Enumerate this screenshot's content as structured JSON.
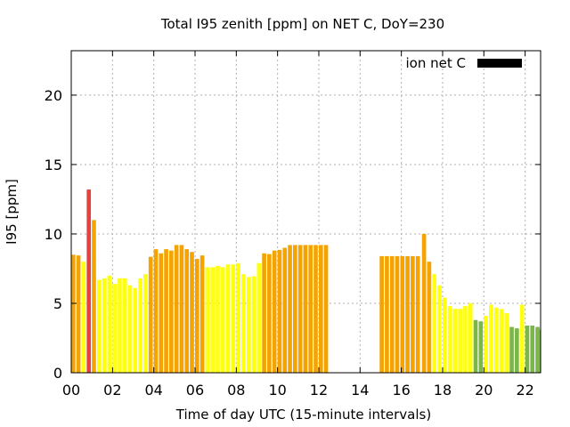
{
  "chart_data": {
    "type": "bar",
    "title": "Total I95 zenith [ppm] on NET C, DoY=230",
    "xlabel": "Time of day UTC (15-minute intervals)",
    "ylabel": "I95 [ppm]",
    "xlim": [
      0,
      22.75
    ],
    "ylim": [
      0,
      23.2
    ],
    "x_ticks": [
      0,
      2,
      4,
      6,
      8,
      10,
      12,
      14,
      16,
      18,
      20,
      22
    ],
    "x_tick_labels": [
      "00",
      "02",
      "04",
      "06",
      "08",
      "10",
      "12",
      "14",
      "16",
      "18",
      "20",
      "22"
    ],
    "y_ticks": [
      0,
      5,
      10,
      15,
      20
    ],
    "y_tick_labels": [
      "0",
      "5",
      "10",
      "15",
      "20"
    ],
    "grid": true,
    "legend": {
      "label": "ion net C",
      "position": "top-right",
      "color": "#000000"
    },
    "colors": {
      "red": "#e8403c",
      "orange": "#f5a300",
      "yellow": "#ffff10",
      "green": "#7ab648"
    },
    "bar_width_hours": 0.2,
    "bars": [
      {
        "x": 0.0,
        "value": 8.5,
        "color": "orange"
      },
      {
        "x": 0.25,
        "value": 8.45,
        "color": "orange"
      },
      {
        "x": 0.5,
        "value": 8.0,
        "color": "yellow"
      },
      {
        "x": 0.75,
        "value": 13.2,
        "color": "red"
      },
      {
        "x": 1.0,
        "value": 11.0,
        "color": "orange"
      },
      {
        "x": 1.25,
        "value": 6.7,
        "color": "yellow"
      },
      {
        "x": 1.5,
        "value": 6.8,
        "color": "yellow"
      },
      {
        "x": 1.75,
        "value": 7.0,
        "color": "yellow"
      },
      {
        "x": 2.0,
        "value": 6.4,
        "color": "yellow"
      },
      {
        "x": 2.25,
        "value": 6.8,
        "color": "yellow"
      },
      {
        "x": 2.5,
        "value": 6.8,
        "color": "yellow"
      },
      {
        "x": 2.75,
        "value": 6.3,
        "color": "yellow"
      },
      {
        "x": 3.0,
        "value": 6.1,
        "color": "yellow"
      },
      {
        "x": 3.25,
        "value": 6.8,
        "color": "yellow"
      },
      {
        "x": 3.5,
        "value": 7.1,
        "color": "yellow"
      },
      {
        "x": 3.75,
        "value": 8.35,
        "color": "orange"
      },
      {
        "x": 4.0,
        "value": 8.9,
        "color": "orange"
      },
      {
        "x": 4.25,
        "value": 8.6,
        "color": "orange"
      },
      {
        "x": 4.5,
        "value": 8.9,
        "color": "orange"
      },
      {
        "x": 4.75,
        "value": 8.8,
        "color": "orange"
      },
      {
        "x": 5.0,
        "value": 9.2,
        "color": "orange"
      },
      {
        "x": 5.25,
        "value": 9.2,
        "color": "orange"
      },
      {
        "x": 5.5,
        "value": 8.9,
        "color": "orange"
      },
      {
        "x": 5.75,
        "value": 8.7,
        "color": "orange"
      },
      {
        "x": 6.0,
        "value": 8.2,
        "color": "orange"
      },
      {
        "x": 6.25,
        "value": 8.45,
        "color": "orange"
      },
      {
        "x": 6.5,
        "value": 7.6,
        "color": "yellow"
      },
      {
        "x": 6.75,
        "value": 7.6,
        "color": "yellow"
      },
      {
        "x": 7.0,
        "value": 7.7,
        "color": "yellow"
      },
      {
        "x": 7.25,
        "value": 7.6,
        "color": "yellow"
      },
      {
        "x": 7.5,
        "value": 7.8,
        "color": "yellow"
      },
      {
        "x": 7.75,
        "value": 7.8,
        "color": "yellow"
      },
      {
        "x": 8.0,
        "value": 7.9,
        "color": "yellow"
      },
      {
        "x": 8.25,
        "value": 7.1,
        "color": "yellow"
      },
      {
        "x": 8.5,
        "value": 6.9,
        "color": "yellow"
      },
      {
        "x": 8.75,
        "value": 6.95,
        "color": "yellow"
      },
      {
        "x": 9.0,
        "value": 7.9,
        "color": "yellow"
      },
      {
        "x": 9.25,
        "value": 8.6,
        "color": "orange"
      },
      {
        "x": 9.5,
        "value": 8.55,
        "color": "orange"
      },
      {
        "x": 9.75,
        "value": 8.8,
        "color": "orange"
      },
      {
        "x": 10.0,
        "value": 8.85,
        "color": "orange"
      },
      {
        "x": 10.25,
        "value": 9.0,
        "color": "orange"
      },
      {
        "x": 10.5,
        "value": 9.2,
        "color": "orange"
      },
      {
        "x": 10.75,
        "value": 9.2,
        "color": "orange"
      },
      {
        "x": 11.0,
        "value": 9.2,
        "color": "orange"
      },
      {
        "x": 11.25,
        "value": 9.2,
        "color": "orange"
      },
      {
        "x": 11.5,
        "value": 9.2,
        "color": "orange"
      },
      {
        "x": 11.75,
        "value": 9.2,
        "color": "orange"
      },
      {
        "x": 12.0,
        "value": 9.2,
        "color": "orange"
      },
      {
        "x": 12.25,
        "value": 9.2,
        "color": "orange"
      },
      {
        "x": 14.95,
        "value": 8.4,
        "color": "orange"
      },
      {
        "x": 15.2,
        "value": 8.4,
        "color": "orange"
      },
      {
        "x": 15.45,
        "value": 8.4,
        "color": "orange"
      },
      {
        "x": 15.7,
        "value": 8.4,
        "color": "orange"
      },
      {
        "x": 15.95,
        "value": 8.4,
        "color": "orange"
      },
      {
        "x": 16.2,
        "value": 8.4,
        "color": "orange"
      },
      {
        "x": 16.45,
        "value": 8.4,
        "color": "orange"
      },
      {
        "x": 16.7,
        "value": 8.4,
        "color": "orange"
      },
      {
        "x": 17.0,
        "value": 10.0,
        "color": "orange"
      },
      {
        "x": 17.25,
        "value": 8.0,
        "color": "orange"
      },
      {
        "x": 17.5,
        "value": 7.1,
        "color": "yellow"
      },
      {
        "x": 17.75,
        "value": 6.3,
        "color": "yellow"
      },
      {
        "x": 18.0,
        "value": 5.4,
        "color": "yellow"
      },
      {
        "x": 18.25,
        "value": 4.8,
        "color": "yellow"
      },
      {
        "x": 18.5,
        "value": 4.6,
        "color": "yellow"
      },
      {
        "x": 18.75,
        "value": 4.6,
        "color": "yellow"
      },
      {
        "x": 19.0,
        "value": 4.8,
        "color": "yellow"
      },
      {
        "x": 19.25,
        "value": 5.0,
        "color": "yellow"
      },
      {
        "x": 19.5,
        "value": 3.8,
        "color": "green"
      },
      {
        "x": 19.75,
        "value": 3.7,
        "color": "green"
      },
      {
        "x": 20.0,
        "value": 4.1,
        "color": "yellow"
      },
      {
        "x": 20.25,
        "value": 4.9,
        "color": "yellow"
      },
      {
        "x": 20.5,
        "value": 4.7,
        "color": "yellow"
      },
      {
        "x": 20.75,
        "value": 4.6,
        "color": "yellow"
      },
      {
        "x": 21.0,
        "value": 4.3,
        "color": "yellow"
      },
      {
        "x": 21.25,
        "value": 3.3,
        "color": "green"
      },
      {
        "x": 21.5,
        "value": 3.2,
        "color": "green"
      },
      {
        "x": 21.75,
        "value": 4.9,
        "color": "yellow"
      },
      {
        "x": 22.0,
        "value": 3.4,
        "color": "green"
      },
      {
        "x": 22.25,
        "value": 3.4,
        "color": "green"
      },
      {
        "x": 22.5,
        "value": 3.3,
        "color": "green"
      },
      {
        "x": 22.7,
        "value": 3.1,
        "color": "green"
      }
    ]
  }
}
